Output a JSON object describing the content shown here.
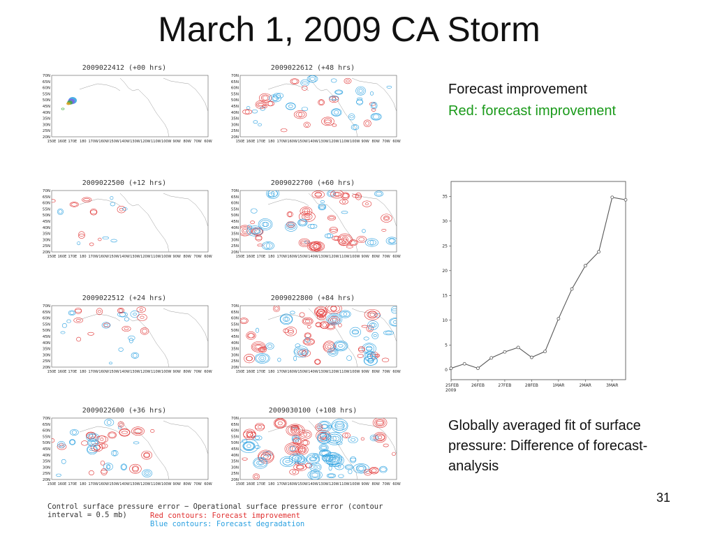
{
  "slide": {
    "title": "March 1, 2009 CA Storm",
    "number": "31"
  },
  "maps": {
    "lat_labels": [
      "70N",
      "65N",
      "60N",
      "55N",
      "50N",
      "45N",
      "40N",
      "35N",
      "30N",
      "25N",
      "20N"
    ],
    "lon_labels": [
      "150E",
      "160E",
      "170E",
      "180",
      "170W",
      "160W",
      "150W",
      "140W",
      "130W",
      "120W",
      "110W",
      "100W",
      "90W",
      "80W",
      "70W",
      "60W"
    ],
    "panels": [
      {
        "id": "p00",
        "title": "2009022412 (+00 hrs)",
        "intensity": 0
      },
      {
        "id": "p48",
        "title": "2009022612 (+48 hrs)",
        "intensity": 4
      },
      {
        "id": "p12",
        "title": "2009022500 (+12 hrs)",
        "intensity": 1
      },
      {
        "id": "p60",
        "title": "2009022700 (+60 hrs)",
        "intensity": 5
      },
      {
        "id": "p24",
        "title": "2009022512 (+24 hrs)",
        "intensity": 2
      },
      {
        "id": "p84",
        "title": "2009022800 (+84 hrs)",
        "intensity": 6
      },
      {
        "id": "p36",
        "title": "2009022600 (+36 hrs)",
        "intensity": 3
      },
      {
        "id": "p108",
        "title": "2009030100 (+108 hrs)",
        "intensity": 7
      }
    ],
    "caption": "Control surface pressure error − Operational surface pressure error (contour interval = 0.5 mb)",
    "caption_red": "Red contours: Forecast improvement",
    "caption_blue": "Blue contours: Forecast degradation",
    "colors": {
      "improvement": "#e03030",
      "degradation": "#2aa0e0"
    }
  },
  "legend": {
    "line1": "Forecast improvement",
    "line2": "Red: forecast improvement"
  },
  "description": "Globally averaged fit of surface pressure: Difference of forecast-analysis",
  "chart_data": {
    "type": "line",
    "title": "",
    "xlabel": "",
    "ylabel": "",
    "x_ticks": [
      "25FEB\n2009",
      "26FEB",
      "27FEB",
      "28FEB",
      "1MAR",
      "2MAR",
      "3MAR"
    ],
    "ylim": [
      -2,
      38
    ],
    "y_ticks": [
      0,
      5,
      10,
      15,
      20,
      25,
      30,
      35
    ],
    "series": [
      {
        "x": [
          0,
          0.5,
          1,
          1.5,
          2,
          2.5,
          3,
          3.5,
          4,
          4.5,
          5,
          5.5,
          6,
          6.5
        ],
        "values": [
          0.3,
          1.2,
          0.3,
          2.4,
          3.6,
          4.5,
          2.5,
          3.7,
          10.3,
          16.3,
          21.0,
          23.8,
          34.8,
          34.3
        ]
      }
    ]
  }
}
